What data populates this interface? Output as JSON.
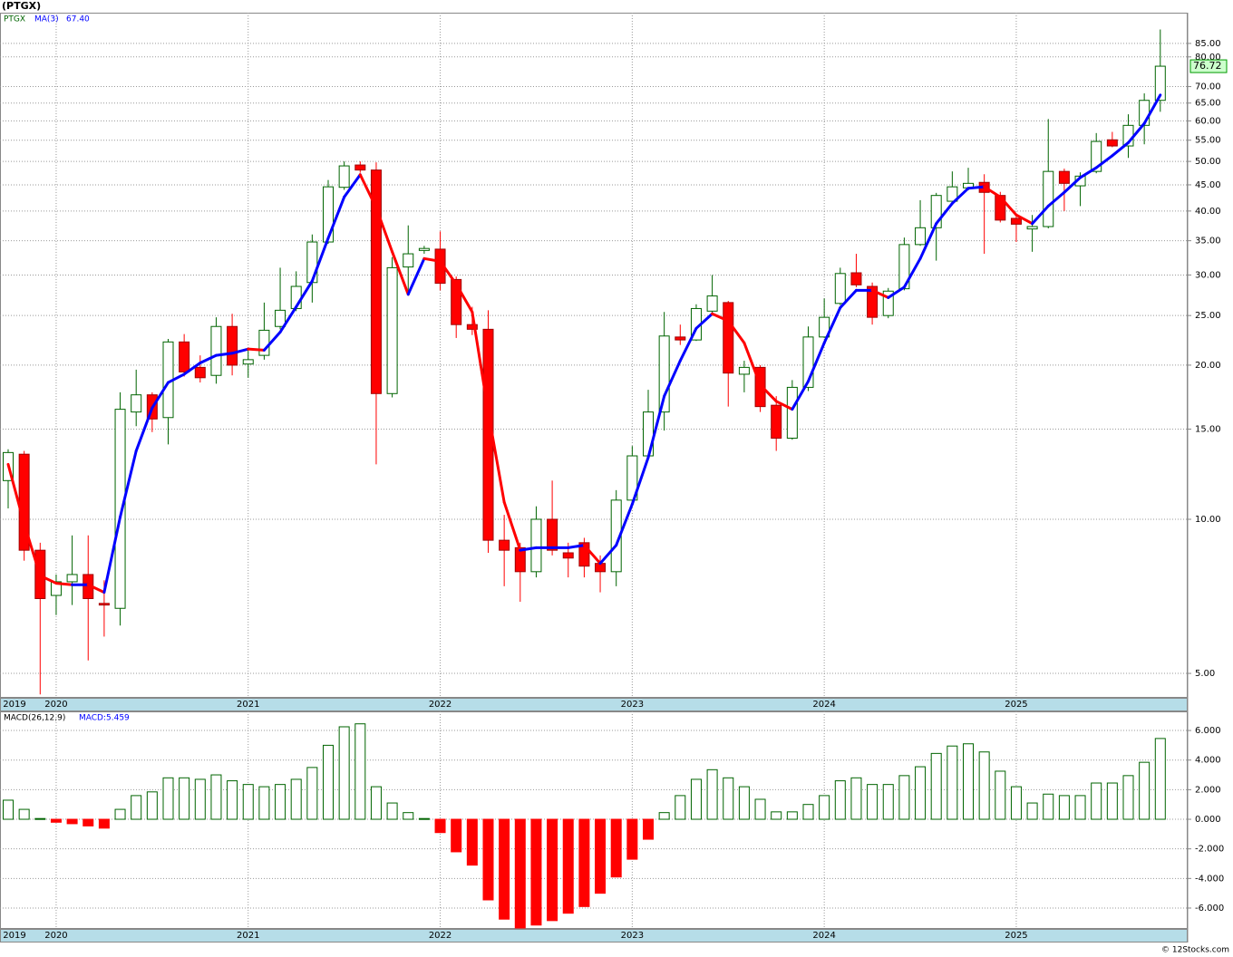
{
  "chart_data": [
    {
      "type": "candlestick",
      "title": "(PTGX)",
      "log": true,
      "grid": true,
      "categories": [
        null,
        null,
        null,
        null,
        null,
        null,
        null,
        null,
        null,
        null,
        null,
        null,
        null,
        null,
        null,
        null,
        null,
        null,
        null,
        null,
        null,
        null,
        null,
        null,
        null,
        null,
        null,
        null,
        null,
        null,
        null,
        null,
        null,
        null,
        null,
        null,
        null,
        null,
        null,
        null,
        null,
        null,
        null,
        null,
        null,
        null,
        null,
        null,
        null,
        null,
        null,
        null,
        null,
        null,
        null,
        null,
        null,
        null,
        null,
        null,
        null,
        null,
        null,
        null,
        null,
        null,
        null,
        null,
        null,
        null,
        null,
        null,
        null
      ],
      "xticks": [
        {
          "value": -0.5,
          "label": "2019"
        },
        {
          "value": 3,
          "label": "2020"
        },
        {
          "value": 15,
          "label": "2021"
        },
        {
          "value": 27,
          "label": "2022"
        },
        {
          "value": 39,
          "label": "2023"
        },
        {
          "value": 51,
          "label": "2024"
        },
        {
          "value": 63,
          "label": "2025"
        }
      ],
      "ylim": [
        4.48,
        97.6
      ],
      "yticks": [
        {
          "value": 5,
          "label": "5.00"
        },
        {
          "value": 10,
          "label": "10.00"
        },
        {
          "value": 15,
          "label": "15.00"
        },
        {
          "value": 20,
          "label": "20.00"
        },
        {
          "value": 25,
          "label": "25.00"
        },
        {
          "value": 30,
          "label": "30.00"
        },
        {
          "value": 35,
          "label": "35.00"
        },
        {
          "value": 40,
          "label": "40.00"
        },
        {
          "value": 45,
          "label": "45.00"
        },
        {
          "value": 50,
          "label": "50.00"
        },
        {
          "value": 55,
          "label": "55.00"
        },
        {
          "value": 60,
          "label": "60.00"
        },
        {
          "value": 65,
          "label": "65.00"
        },
        {
          "value": 70,
          "label": "70.00"
        },
        {
          "value": 80,
          "label": "80.00"
        },
        {
          "value": 85,
          "label": "85.00"
        }
      ],
      "series": [
        {
          "name": "PTGX",
          "up_color": "#006400",
          "down_color": "#ff0000",
          "open": [
            11.9,
            13.4,
            8.7,
            7.1,
            7.55,
            7.8,
            6.85,
            6.7,
            16.2,
            17.5,
            15.8,
            22.2,
            19.8,
            19.1,
            23.8,
            20.1,
            20.9,
            23.8,
            25.8,
            29,
            34.8,
            44.5,
            49.2,
            48.1,
            17.6,
            31.1,
            33.5,
            33.7,
            29.4,
            24.0,
            23.5,
            9.1,
            8.8,
            7.9,
            10.0,
            8.6,
            9.0,
            8.2,
            7.9,
            10.9,
            13.3,
            16.2,
            22.7,
            22.4,
            25.5,
            26.5,
            19.2,
            19.8,
            16.7,
            14.4,
            18.1,
            22.7,
            26.4,
            30.3,
            28.5,
            25.0,
            28.2,
            34.4,
            37.1,
            41.8,
            44.4,
            45.5,
            42.9,
            38.7,
            36.9,
            37.3,
            47.8,
            44.8,
            47.8,
            55.1,
            53.6,
            58.8,
            65.8
          ],
          "high": [
            13.7,
            13.6,
            9.0,
            7.8,
            9.3,
            9.3,
            7.6,
            17.7,
            19.6,
            17.7,
            22.5,
            23.0,
            20.9,
            24.8,
            25.2,
            21.5,
            26.5,
            31,
            30.5,
            36,
            46,
            50,
            50,
            49.8,
            32.5,
            37.5,
            34.2,
            36.5,
            29.8,
            26,
            25.6,
            10.2,
            9.0,
            10.6,
            11.9,
            9.0,
            9.2,
            8.5,
            11.4,
            13.9,
            17.9,
            25.4,
            24.0,
            26.3,
            30.0,
            26.7,
            20.4,
            20.0,
            17.4,
            18.7,
            23.8,
            27,
            31,
            33,
            29.0,
            28.3,
            35.5,
            42,
            43.4,
            47.8,
            48.6,
            47.2,
            43.6,
            39.5,
            39.3,
            60.5,
            48.4,
            47.6,
            56.8,
            57.1,
            61.8,
            67.9,
            90.5
          ],
          "low": [
            10.5,
            8.3,
            4.55,
            6.5,
            6.8,
            5.3,
            5.9,
            6.2,
            15.2,
            14.8,
            14.0,
            19.0,
            18.5,
            18.4,
            19.1,
            18.9,
            20.5,
            23.5,
            25.5,
            26.5,
            34.5,
            44,
            47.5,
            12.8,
            17.3,
            27.5,
            33.0,
            28.0,
            22.6,
            22.9,
            8.6,
            7.4,
            6.9,
            7.7,
            8.5,
            7.7,
            7.7,
            7.2,
            7.4,
            10.7,
            13.1,
            14.9,
            21.9,
            22.3,
            25.0,
            16.6,
            17.7,
            16.2,
            13.6,
            14.3,
            17.8,
            22.6,
            26.2,
            28.4,
            24.0,
            24.7,
            28.0,
            34.2,
            32,
            41.3,
            43.9,
            33,
            38.0,
            34.8,
            33.3,
            37.0,
            40.0,
            40.9,
            47.4,
            53.3,
            50.8,
            54,
            62.5
          ],
          "close": [
            13.5,
            8.7,
            7.0,
            7.55,
            7.8,
            7.0,
            6.8,
            16.4,
            17.5,
            15.7,
            22.2,
            19.4,
            18.9,
            23.8,
            20.0,
            20.5,
            23.4,
            25.6,
            28.5,
            34.8,
            44.6,
            49.0,
            48.1,
            17.6,
            31.0,
            33.0,
            33.8,
            28.9,
            24.0,
            23.5,
            9.1,
            8.7,
            7.9,
            10.0,
            8.7,
            8.4,
            8.1,
            7.9,
            10.9,
            13.3,
            16.2,
            22.8,
            22.4,
            25.8,
            27.3,
            19.3,
            19.8,
            16.6,
            14.4,
            18.1,
            22.7,
            24.8,
            30.2,
            28.7,
            24.8,
            27.9,
            34.4,
            37.1,
            42.9,
            44.6,
            45.3,
            43.5,
            38.4,
            37.7,
            37.3,
            47.8,
            45.3,
            46.8,
            54.7,
            53.6,
            58.8,
            65.8,
            76.72
          ]
        },
        {
          "name": "MA(3)",
          "up_color": "#0000ff",
          "down_color": "#ff0000",
          "value_label": "67.40",
          "values": [
            12.8,
            9.8,
            7.76,
            7.5,
            7.45,
            7.45,
            7.2,
            10.1,
            13.6,
            16.5,
            18.5,
            19.2,
            20.2,
            20.9,
            21.1,
            21.5,
            21.4,
            23.2,
            26.0,
            29.2,
            35.4,
            42.6,
            47.1,
            40.6,
            33.3,
            27.5,
            32.3,
            31.9,
            28.8,
            25.4,
            16.2,
            10.8,
            8.7,
            8.8,
            8.8,
            8.8,
            8.9,
            8.2,
            8.9,
            10.7,
            13.2,
            17.4,
            20.4,
            23.6,
            25.2,
            24.4,
            22.1,
            18.3,
            17.0,
            16.4,
            18.6,
            22.1,
            25.9,
            28.0,
            28.0,
            27.1,
            28.4,
            32.3,
            37.8,
            41.4,
            44.3,
            44.6,
            42.6,
            39.3,
            37.8,
            40.9,
            43.5,
            46.5,
            48.6,
            51.3,
            54.4,
            59.3,
            67.4
          ]
        }
      ]
    },
    {
      "type": "bar",
      "title": "MACD(26,12,9)",
      "grid": true,
      "categories": [
        null,
        null,
        null,
        null,
        null,
        null,
        null,
        null,
        null,
        null,
        null,
        null,
        null,
        null,
        null,
        null,
        null,
        null,
        null,
        null,
        null,
        null,
        null,
        null,
        null,
        null,
        null,
        null,
        null,
        null,
        null,
        null,
        null,
        null,
        null,
        null,
        null,
        null,
        null,
        null,
        null,
        null,
        null,
        null,
        null,
        null,
        null,
        null,
        null,
        null,
        null,
        null,
        null,
        null,
        null,
        null,
        null,
        null,
        null,
        null,
        null,
        null,
        null,
        null,
        null,
        null,
        null,
        null,
        null,
        null,
        null,
        null,
        null
      ],
      "xticks": [
        {
          "value": -0.5,
          "label": "2019"
        },
        {
          "value": 3,
          "label": "2020"
        },
        {
          "value": 15,
          "label": "2021"
        },
        {
          "value": 27,
          "label": "2022"
        },
        {
          "value": 39,
          "label": "2023"
        },
        {
          "value": 51,
          "label": "2024"
        },
        {
          "value": 63,
          "label": "2025"
        }
      ],
      "ylim": [
        -7.41,
        7.29
      ],
      "yticks": [
        {
          "value": 6,
          "label": "6.000"
        },
        {
          "value": 4,
          "label": "4.000"
        },
        {
          "value": 2,
          "label": "2.000"
        },
        {
          "value": 0,
          "label": "0.000"
        },
        {
          "value": -2,
          "label": "-2.000"
        },
        {
          "value": -4,
          "label": "-4.000"
        },
        {
          "value": -6,
          "label": "-6.000"
        }
      ],
      "series": [
        {
          "label": "MACD:5.459",
          "up_color": "#006400",
          "down_color": "#ff0000",
          "values": [
            1.29,
            0.67,
            0.05,
            -0.2,
            -0.3,
            -0.45,
            -0.6,
            0.67,
            1.6,
            1.85,
            2.8,
            2.8,
            2.7,
            3.0,
            2.6,
            2.35,
            2.2,
            2.35,
            2.7,
            3.5,
            5.0,
            6.25,
            6.45,
            2.2,
            1.1,
            0.45,
            0.05,
            -0.9,
            -2.2,
            -3.1,
            -5.45,
            -6.75,
            -7.35,
            -7.15,
            -6.85,
            -6.35,
            -5.9,
            -5.0,
            -3.9,
            -2.7,
            -1.35,
            0.45,
            1.6,
            2.7,
            3.35,
            2.8,
            2.2,
            1.35,
            0.5,
            0.5,
            1.0,
            1.6,
            2.6,
            2.8,
            2.35,
            2.35,
            2.95,
            3.55,
            4.45,
            4.95,
            5.1,
            4.55,
            3.25,
            2.2,
            1.1,
            1.7,
            1.6,
            1.6,
            2.45,
            2.45,
            2.95,
            3.85,
            5.459
          ]
        }
      ]
    }
  ],
  "footer": "© 12Stocks.com"
}
